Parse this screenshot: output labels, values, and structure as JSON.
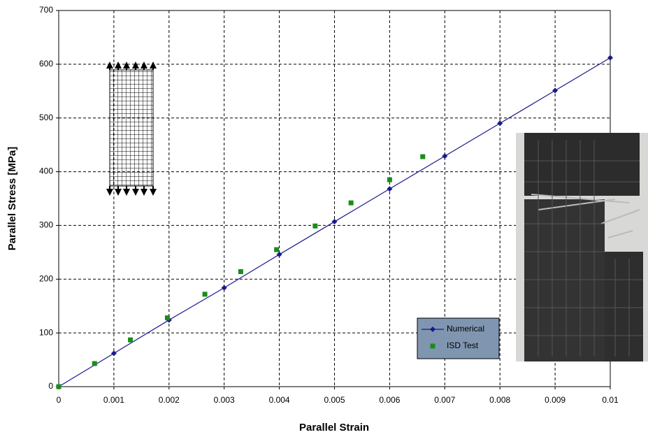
{
  "chart_data": {
    "type": "line",
    "x_label": "Parallel Strain",
    "y_label": "Parallel Stress [MPa]",
    "xlim": [
      0,
      0.01
    ],
    "ylim": [
      0,
      700
    ],
    "xticks": [
      0,
      0.001,
      0.002,
      0.003,
      0.004,
      0.005,
      0.006,
      0.007,
      0.008,
      0.009,
      0.01
    ],
    "yticks": [
      0,
      100,
      200,
      300,
      400,
      500,
      600,
      700
    ],
    "grid": true,
    "legend": "lower right",
    "series": [
      {
        "name": "Numerical",
        "color": "#1a1a8c",
        "line": true,
        "marker": "diamond",
        "x": [
          0,
          0.001,
          0.002,
          0.003,
          0.004,
          0.005,
          0.006,
          0.007,
          0.008,
          0.009,
          0.01
        ],
        "values": [
          0,
          62,
          124,
          184,
          246,
          307,
          368,
          429,
          490,
          551,
          612
        ]
      },
      {
        "name": "ISD Test",
        "color": "#1a8c1a",
        "line": false,
        "marker": "square",
        "x": [
          0,
          0.00065,
          0.0013,
          0.00197,
          0.00265,
          0.0033,
          0.00395,
          0.00465,
          0.0053,
          0.006,
          0.0066
        ],
        "values": [
          0,
          43,
          87,
          128,
          172,
          214,
          255,
          299,
          342,
          385,
          428
        ]
      }
    ]
  }
}
